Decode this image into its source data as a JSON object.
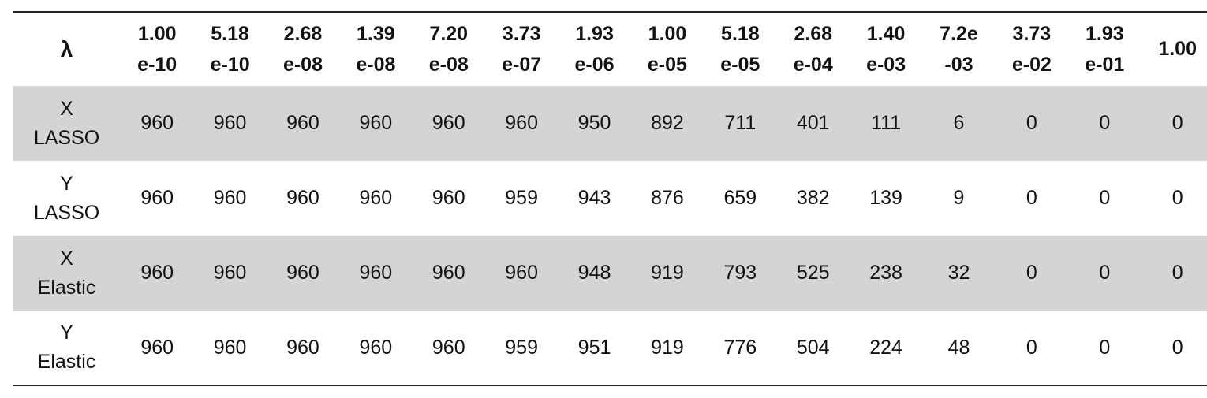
{
  "table": {
    "lambda_symbol": "λ",
    "lambda_values": [
      {
        "line1": "1.00",
        "line2": "e-10"
      },
      {
        "line1": "5.18",
        "line2": "e-10"
      },
      {
        "line1": "2.68",
        "line2": "e-08"
      },
      {
        "line1": "1.39",
        "line2": "e-08"
      },
      {
        "line1": "7.20",
        "line2": "e-08"
      },
      {
        "line1": "3.73",
        "line2": "e-07"
      },
      {
        "line1": "1.93",
        "line2": "e-06"
      },
      {
        "line1": "1.00",
        "line2": "e-05"
      },
      {
        "line1": "5.18",
        "line2": "e-05"
      },
      {
        "line1": "2.68",
        "line2": "e-04"
      },
      {
        "line1": "1.40",
        "line2": "e-03"
      },
      {
        "line1": "7.2e",
        "line2": "-03"
      },
      {
        "line1": "3.73",
        "line2": "e-02"
      },
      {
        "line1": "1.93",
        "line2": "e-01"
      },
      {
        "line1": "1.00",
        "line2": ""
      }
    ],
    "rows": [
      {
        "label1": "X",
        "label2": "LASSO",
        "shaded": true,
        "values": [
          "960",
          "960",
          "960",
          "960",
          "960",
          "960",
          "950",
          "892",
          "711",
          "401",
          "111",
          "6",
          "0",
          "0",
          "0"
        ]
      },
      {
        "label1": "Y",
        "label2": "LASSO",
        "shaded": false,
        "values": [
          "960",
          "960",
          "960",
          "960",
          "960",
          "959",
          "943",
          "876",
          "659",
          "382",
          "139",
          "9",
          "0",
          "0",
          "0"
        ]
      },
      {
        "label1": "X",
        "label2": "Elastic",
        "shaded": true,
        "values": [
          "960",
          "960",
          "960",
          "960",
          "960",
          "960",
          "948",
          "919",
          "793",
          "525",
          "238",
          "32",
          "0",
          "0",
          "0"
        ]
      },
      {
        "label1": "Y",
        "label2": "Elastic",
        "shaded": false,
        "values": [
          "960",
          "960",
          "960",
          "960",
          "960",
          "959",
          "951",
          "919",
          "776",
          "504",
          "224",
          "48",
          "0",
          "0",
          "0"
        ]
      }
    ],
    "colors": {
      "shaded_row": "#d4d4d4",
      "rule": "#222222",
      "text": "#111111"
    }
  }
}
